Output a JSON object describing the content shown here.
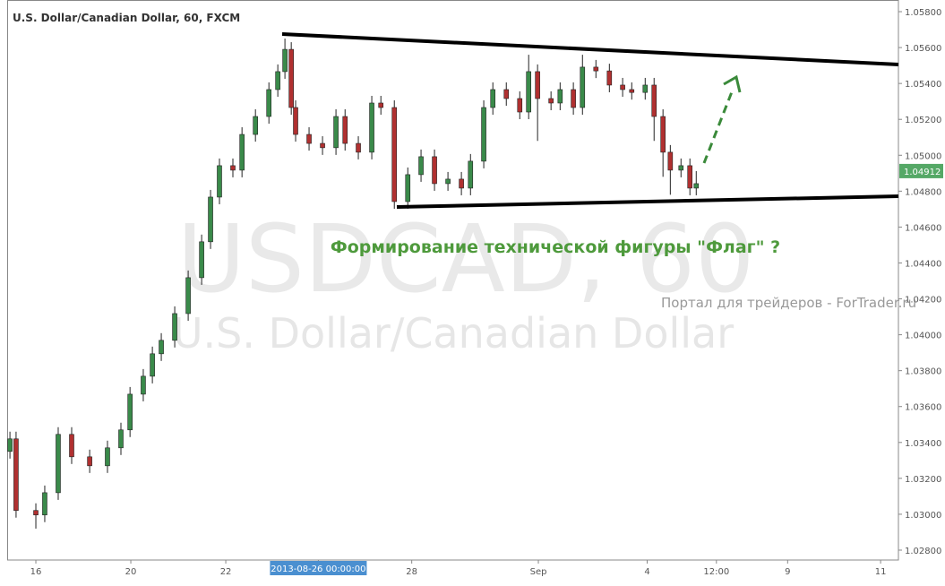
{
  "chart_data": {
    "type": "candlestick",
    "title": "U.S. Dollar/Canadian Dollar, 60, FXCM",
    "watermark_symbol": "USDCAD, 60",
    "watermark_name": "U.S. Dollar/Canadian Dollar",
    "annotation": "Формирование технической фигуры \"Флаг\" ?",
    "source_note": "Портал для трейдеров - ForTrader.ru",
    "up_color": "#3a8a4a",
    "down_color": "#b03030",
    "last_price": 1.04912,
    "last_price_color": "#55a866",
    "xlim": [
      -14.5,
      436.0
    ],
    "xticks": [
      {
        "value": 0,
        "label": "16"
      },
      {
        "value": 48,
        "label": "20"
      },
      {
        "value": 96,
        "label": "22"
      },
      {
        "value": 142.8,
        "label": "2013-08-26 00:00:00"
      },
      {
        "value": 190,
        "label": "28"
      },
      {
        "value": 254,
        "label": "Sep"
      },
      {
        "value": 309,
        "label": "4"
      },
      {
        "value": 344,
        "label": "12:00"
      },
      {
        "value": 380,
        "label": "9"
      },
      {
        "value": 427,
        "label": "11"
      }
    ],
    "ylim": [
      1.02745,
      1.05865
    ],
    "yticks": [
      {
        "value": 1.028,
        "label": "1.02800"
      },
      {
        "value": 1.03,
        "label": "1.03000"
      },
      {
        "value": 1.032,
        "label": "1.03200"
      },
      {
        "value": 1.034,
        "label": "1.03400"
      },
      {
        "value": 1.036,
        "label": "1.03600"
      },
      {
        "value": 1.038,
        "label": "1.03800"
      },
      {
        "value": 1.04,
        "label": "1.04000"
      },
      {
        "value": 1.042,
        "label": "1.04200"
      },
      {
        "value": 1.044,
        "label": "1.04400"
      },
      {
        "value": 1.046,
        "label": "1.04600"
      },
      {
        "value": 1.048,
        "label": "1.04800"
      },
      {
        "value": 1.05,
        "label": "1.05000"
      },
      {
        "value": 1.052,
        "label": "1.05200"
      },
      {
        "value": 1.054,
        "label": "1.05400"
      },
      {
        "value": 1.056,
        "label": "1.05600"
      },
      {
        "value": 1.058,
        "label": "1.05800"
      }
    ],
    "x": [
      -13.1,
      -10.0,
      0,
      4.5,
      11.3,
      18.1,
      27.2,
      36.2,
      43.0,
      47.6,
      54.3,
      58.9,
      63.4,
      70.2,
      77.0,
      83.8,
      88.3,
      92.8,
      99.6,
      104.2,
      111.0,
      117.8,
      122.3,
      125.9,
      129.1,
      131.3,
      138.1,
      144.9,
      151.7,
      156.3,
      163.0,
      169.8,
      174.4,
      181.2,
      188.0,
      194.7,
      201.5,
      208.3,
      215.1,
      219.7,
      226.4,
      231.0,
      237.8,
      244.6,
      249.1,
      253.6,
      260.4,
      265.0,
      271.7,
      276.3,
      283.1,
      289.9,
      296.6,
      301.2,
      308.0,
      312.5,
      317.0,
      320.7,
      326.1,
      330.6,
      333.8
    ],
    "open": [
      1.0335,
      1.0342,
      1.03021,
      1.02996,
      1.0312,
      1.03445,
      1.0332,
      1.0327,
      1.0337,
      1.0347,
      1.03669,
      1.03769,
      1.03894,
      1.03969,
      1.04118,
      1.04318,
      1.04518,
      1.04767,
      1.04942,
      1.04917,
      1.05116,
      1.05216,
      1.05366,
      1.05466,
      1.0559,
      1.05266,
      1.05116,
      1.05066,
      1.05042,
      1.05216,
      1.05066,
      1.05017,
      1.05291,
      1.05266,
      1.04742,
      1.04892,
      1.04992,
      1.04842,
      1.04867,
      1.04817,
      1.04967,
      1.05266,
      1.05366,
      1.05316,
      1.05241,
      1.05466,
      1.05316,
      1.05291,
      1.05366,
      1.05266,
      1.05491,
      1.0547,
      1.05391,
      1.05366,
      1.0535,
      1.05391,
      1.05216,
      1.05017,
      1.04917,
      1.04942,
      1.04817
    ],
    "high": [
      1.0346,
      1.0346,
      1.03061,
      1.0316,
      1.03485,
      1.03485,
      1.0336,
      1.0341,
      1.0351,
      1.03709,
      1.03809,
      1.03934,
      1.04009,
      1.04158,
      1.04358,
      1.04558,
      1.04807,
      1.04982,
      1.04982,
      1.05156,
      1.05256,
      1.05406,
      1.05506,
      1.0565,
      1.0563,
      1.05306,
      1.05156,
      1.05106,
      1.05256,
      1.05256,
      1.05106,
      1.05331,
      1.05331,
      1.05306,
      1.04932,
      1.05032,
      1.05032,
      1.04907,
      1.04907,
      1.05007,
      1.05306,
      1.05406,
      1.05406,
      1.05356,
      1.0556,
      1.05506,
      1.05356,
      1.05406,
      1.05406,
      1.0556,
      1.05531,
      1.0551,
      1.05431,
      1.05406,
      1.05431,
      1.05431,
      1.05256,
      1.05057,
      1.04982,
      1.04982,
      1.04912
    ],
    "low": [
      1.0331,
      1.02981,
      1.0292,
      1.02956,
      1.0308,
      1.0328,
      1.0323,
      1.0323,
      1.0333,
      1.0343,
      1.03629,
      1.03729,
      1.03854,
      1.03929,
      1.04078,
      1.04278,
      1.04478,
      1.04727,
      1.04877,
      1.04877,
      1.05076,
      1.05176,
      1.05326,
      1.05426,
      1.05226,
      1.05076,
      1.05026,
      1.05002,
      1.05002,
      1.05026,
      1.04977,
      1.04977,
      1.05226,
      1.04702,
      1.04702,
      1.04852,
      1.04802,
      1.04802,
      1.04777,
      1.04777,
      1.04927,
      1.05226,
      1.05276,
      1.05201,
      1.05201,
      1.0508,
      1.05251,
      1.05251,
      1.05226,
      1.05226,
      1.0543,
      1.05351,
      1.05326,
      1.0531,
      1.0531,
      1.0508,
      1.0488,
      1.0478,
      1.04877,
      1.04777,
      1.04777
    ],
    "close": [
      1.0342,
      1.03021,
      1.02996,
      1.0312,
      1.03445,
      1.0332,
      1.0327,
      1.0337,
      1.0347,
      1.03669,
      1.03769,
      1.03894,
      1.03969,
      1.04118,
      1.04318,
      1.04518,
      1.04767,
      1.04942,
      1.04917,
      1.05116,
      1.05216,
      1.05366,
      1.05466,
      1.0559,
      1.05266,
      1.05116,
      1.05066,
      1.05042,
      1.05216,
      1.05066,
      1.05017,
      1.05291,
      1.05266,
      1.04742,
      1.04892,
      1.04992,
      1.04842,
      1.04867,
      1.04817,
      1.04967,
      1.05266,
      1.05366,
      1.05316,
      1.05241,
      1.05466,
      1.05316,
      1.05291,
      1.05366,
      1.05266,
      1.05491,
      1.0547,
      1.05391,
      1.05366,
      1.0535,
      1.05391,
      1.05216,
      1.05017,
      1.04917,
      1.04942,
      1.04817,
      1.04842
    ]
  }
}
